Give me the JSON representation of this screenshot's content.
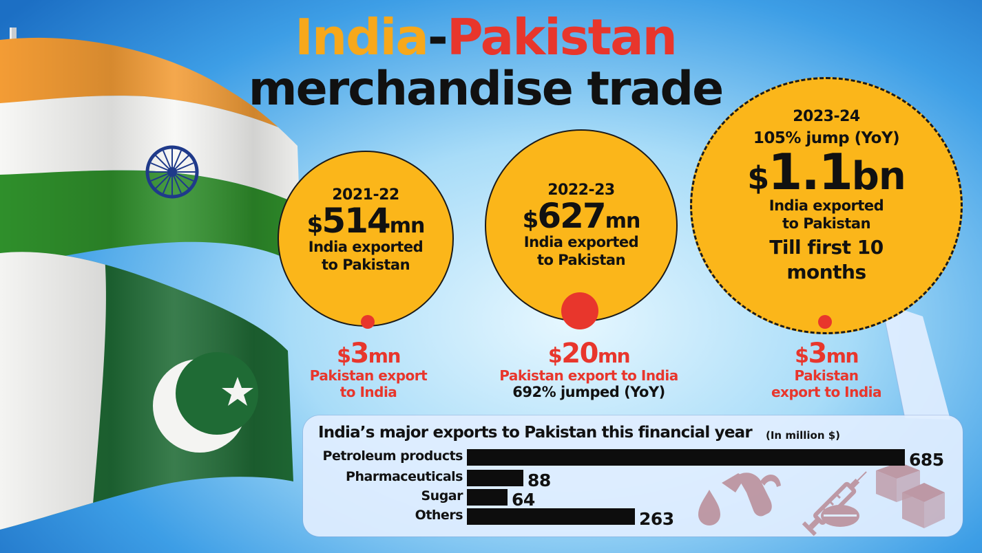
{
  "title": {
    "part1": "India",
    "dash": "-",
    "part2": "Pakistan",
    "line2": "merchandise trade"
  },
  "colors": {
    "india_orange": "#f7a81b",
    "pakistan_red": "#e8362c",
    "circle_yellow": "#fbb61a",
    "bar_black": "#0d0d0d"
  },
  "india_exports": [
    {
      "year": "2021-22",
      "currency": "$",
      "amount": "514",
      "unit": "mn",
      "line1": "India exported",
      "line2": "to Pakistan",
      "value_mn": 514
    },
    {
      "year": "2022-23",
      "currency": "$",
      "amount": "627",
      "unit": "mn",
      "line1": "India exported",
      "line2": "to Pakistan",
      "value_mn": 627
    },
    {
      "year": "2023-24",
      "jump": "105% jump (YoY)",
      "currency": "$",
      "amount": "1.1",
      "unit": "bn",
      "line1": "India exported",
      "line2": "to Pakistan",
      "till1": "Till first 10",
      "till2": "months",
      "value_mn": 1100
    }
  ],
  "pakistan_exports": [
    {
      "currency": "$",
      "amount": "3",
      "unit": "mn",
      "line1": "Pakistan export",
      "line2": "to India",
      "note": "",
      "value_mn": 3
    },
    {
      "currency": "$",
      "amount": "20",
      "unit": "mn",
      "line1": "Pakistan export to India",
      "line2": "",
      "note": "692% jumped (YoY)",
      "value_mn": 20
    },
    {
      "currency": "$",
      "amount": "3",
      "unit": "mn",
      "line1": "Pakistan",
      "line2": "export to India",
      "note": "",
      "value_mn": 3
    }
  ],
  "icons": [
    "india-flag-icon",
    "pakistan-flag-icon",
    "fuel-nozzle-icon",
    "oil-drop-icon",
    "syringe-icon",
    "pill-icon",
    "sugar-cubes-icon"
  ],
  "chart_data": {
    "type": "bar",
    "orientation": "horizontal",
    "title": "India’s major exports to Pakistan this financial year",
    "units": "(In million $)",
    "categories": [
      "Petroleum products",
      "Pharmaceuticals",
      "Sugar",
      "Others"
    ],
    "values": [
      685,
      88,
      64,
      263
    ],
    "xlim": [
      0,
      685
    ]
  }
}
